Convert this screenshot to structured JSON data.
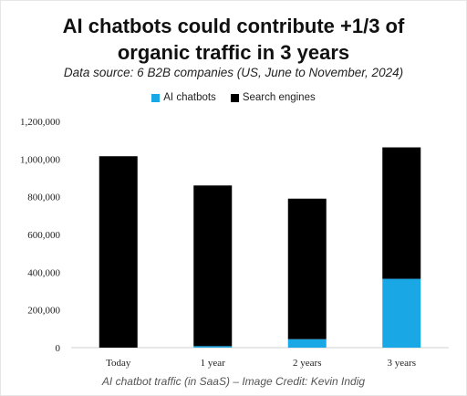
{
  "title_line1": "AI chatbots could contribute +1/3 of",
  "title_line2": "organic traffic in 3 years",
  "subtitle": "Data source: 6 B2B companies (US, June to November, 2024)",
  "caption": "AI chatbot traffic (in SaaS) – Image Credit: Kevin Indig",
  "chart_data": {
    "type": "bar",
    "stacked": true,
    "categories": [
      "Today",
      "1 year",
      "2 years",
      "3 years"
    ],
    "series": [
      {
        "name": "AI chatbots",
        "color": "#1aa7e6",
        "values": [
          0,
          8000,
          45000,
          365000
        ]
      },
      {
        "name": "Search engines",
        "color": "#000000",
        "values": [
          1015000,
          852000,
          745000,
          697000
        ]
      }
    ],
    "y_ticks": [
      "0",
      "200,000",
      "400,000",
      "600,000",
      "800,000",
      "1,000,000",
      "1,200,000"
    ],
    "y_tick_values": [
      0,
      200000,
      400000,
      600000,
      800000,
      1000000,
      1200000
    ],
    "ylim": [
      0,
      1200000
    ],
    "grid": false,
    "legend_position": "top-center"
  }
}
